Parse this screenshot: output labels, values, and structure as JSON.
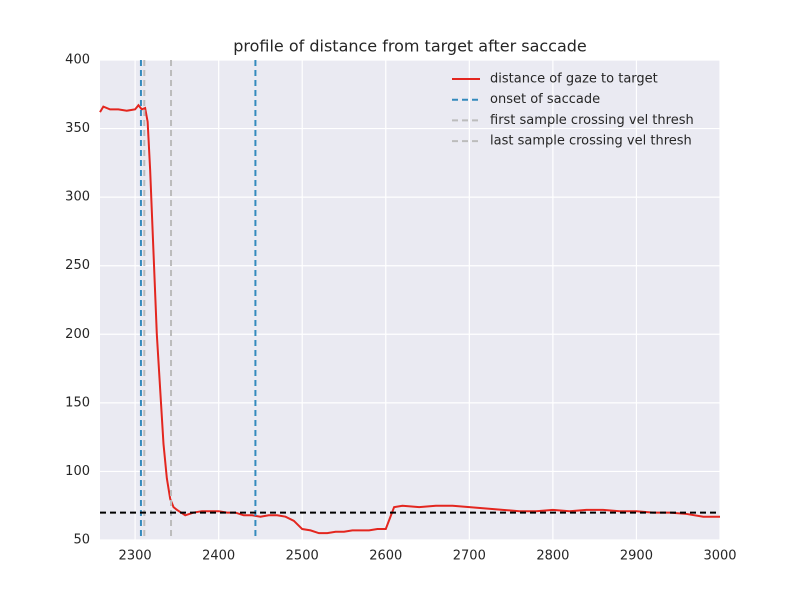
{
  "chart_data": {
    "type": "line",
    "title": "profile of distance from target after saccade",
    "xlim": [
      2258,
      3000
    ],
    "ylim": [
      50,
      400
    ],
    "xticks": [
      2300,
      2400,
      2500,
      2600,
      2700,
      2800,
      2900,
      3000
    ],
    "yticks": [
      50,
      100,
      150,
      200,
      250,
      300,
      350,
      400
    ],
    "grid": true,
    "legend": "upper right",
    "series": [
      {
        "name": "distance of gaze to target",
        "color": "#e3261f",
        "x": [
          2258,
          2262,
          2270,
          2280,
          2290,
          2300,
          2304,
          2308,
          2312,
          2315,
          2318,
          2322,
          2326,
          2330,
          2334,
          2338,
          2342,
          2346,
          2350,
          2360,
          2370,
          2380,
          2390,
          2400,
          2410,
          2420,
          2430,
          2440,
          2450,
          2460,
          2470,
          2480,
          2490,
          2500,
          2510,
          2520,
          2530,
          2540,
          2550,
          2560,
          2570,
          2580,
          2590,
          2600,
          2610,
          2620,
          2640,
          2660,
          2680,
          2700,
          2720,
          2740,
          2760,
          2780,
          2800,
          2820,
          2840,
          2860,
          2880,
          2900,
          2920,
          2940,
          2960,
          2980,
          3000
        ],
        "values": [
          362,
          366,
          364,
          364,
          363,
          364,
          367,
          364,
          365,
          355,
          320,
          260,
          200,
          160,
          120,
          95,
          80,
          74,
          72,
          68,
          70,
          71,
          71,
          71,
          70,
          70,
          68,
          68,
          67,
          68,
          68,
          67,
          64,
          58,
          57,
          55,
          55,
          56,
          56,
          57,
          57,
          57,
          58,
          58,
          74,
          75,
          74,
          75,
          75,
          74,
          73,
          72,
          71,
          71,
          72,
          71,
          72,
          72,
          71,
          71,
          70,
          70,
          69,
          67,
          67
        ]
      }
    ],
    "vlines": [
      {
        "name": "onset of saccade",
        "color": "#348abd",
        "x": [
          2307,
          2444
        ]
      },
      {
        "name": "first sample crossing vel thresh",
        "color": "#bcbcbc",
        "x": [
          2311
        ]
      },
      {
        "name": "last sample crossing vel thresh",
        "color": "#bcbcbc",
        "x": [
          2343
        ]
      }
    ],
    "hline": {
      "y": 70,
      "color": "#000000"
    }
  }
}
